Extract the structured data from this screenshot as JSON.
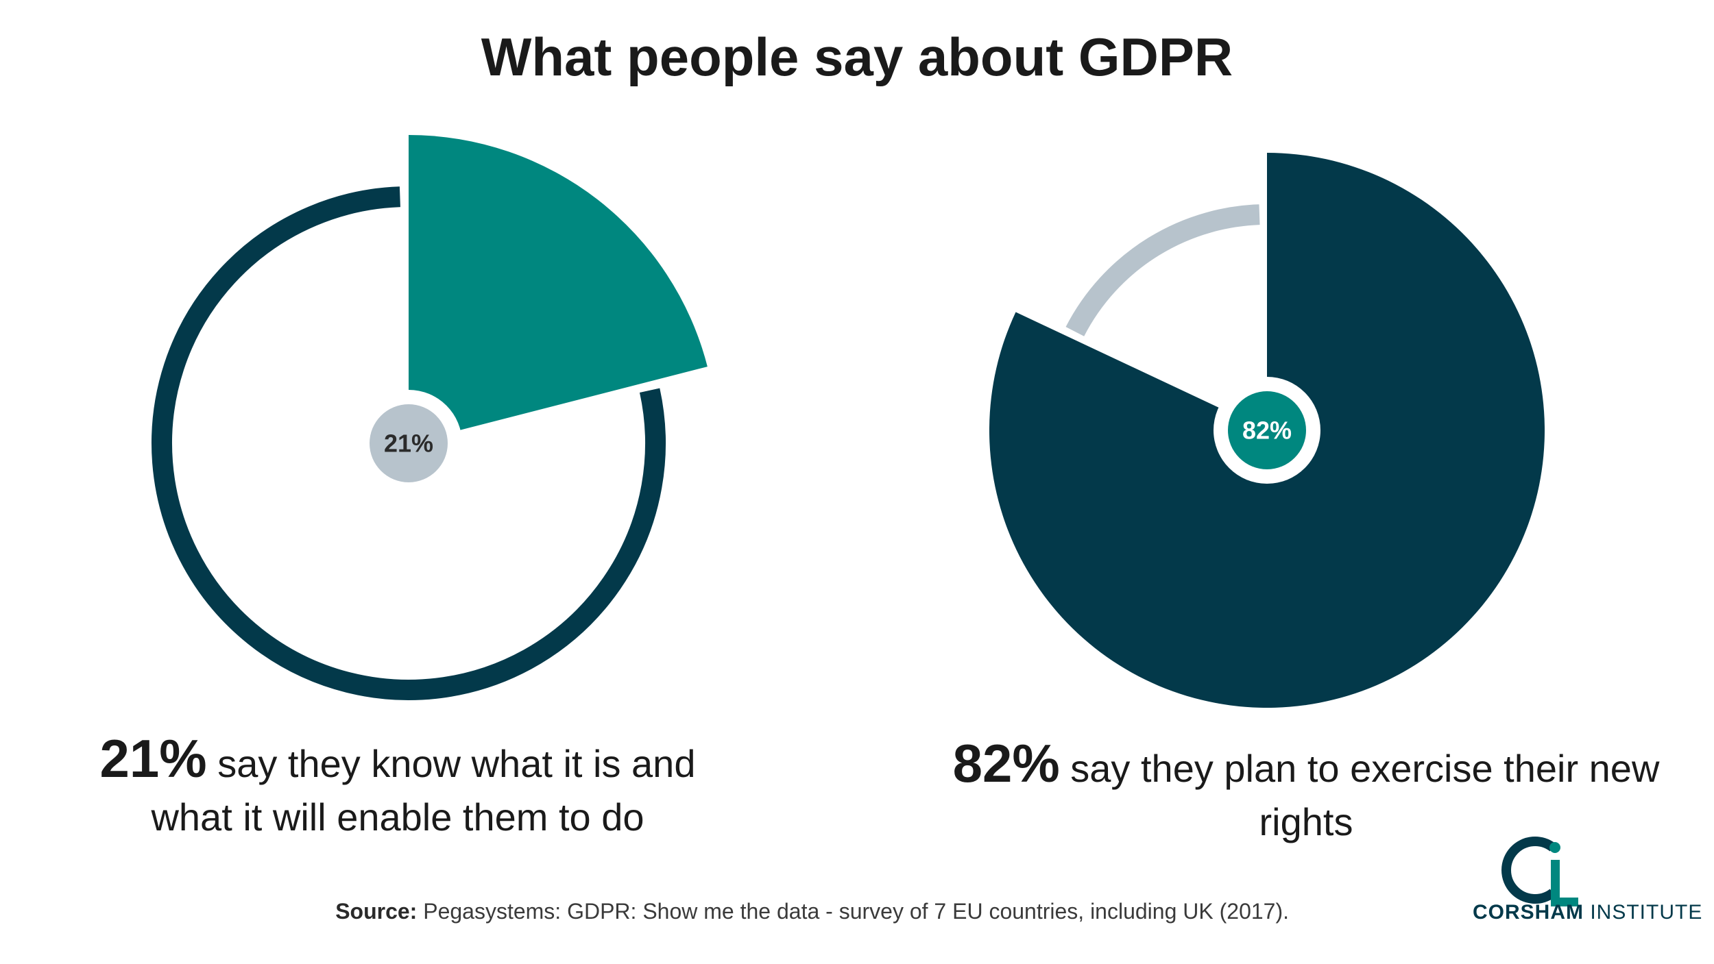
{
  "title": "What people say about GDPR",
  "chart_data": [
    {
      "type": "pie",
      "values": [
        21,
        79
      ],
      "center_label": "21%",
      "caption_value": "21%",
      "caption_text": "say they know what it is and what it will enable them to do",
      "colors": {
        "highlight": "#00877f",
        "remainder": "#03394a",
        "center": "#b7c3cc"
      }
    },
    {
      "type": "pie",
      "values": [
        82,
        18
      ],
      "center_label": "82%",
      "caption_value": "82%",
      "caption_text": "say they plan to exercise their new rights",
      "colors": {
        "highlight": "#03394a",
        "remainder": "#b7c3cc",
        "center": "#00877f"
      }
    }
  ],
  "source": {
    "label": "Source:",
    "text": "Pegasystems: GDPR: Show me the data - survey of 7 EU countries, including UK (2017)."
  },
  "logo": {
    "bold": "CORSHAM",
    "rest": "INSTITUTE",
    "colors": {
      "teal": "#00877f",
      "navy": "#03394a"
    }
  }
}
